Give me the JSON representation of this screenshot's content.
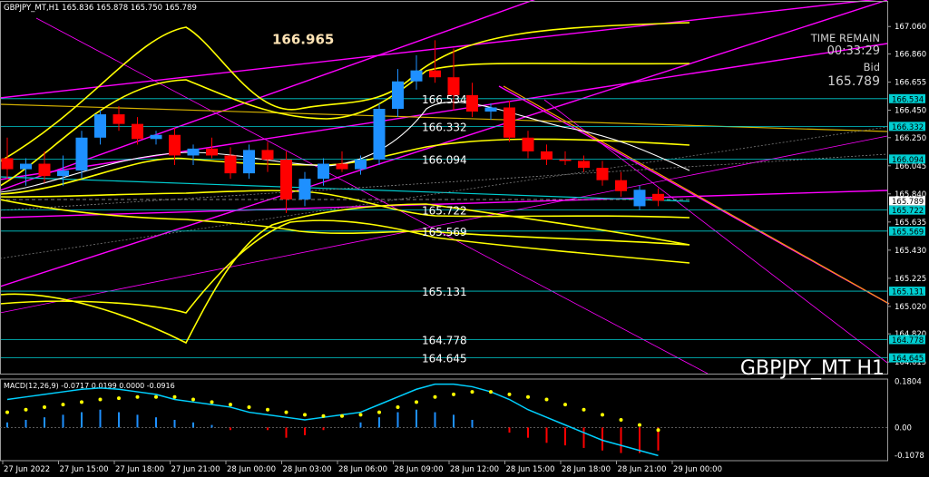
{
  "symbol_header": "GBPJPY_MT,H1  165.836 165.878 165.750 165.789",
  "watermark": "GBPJPY_MT H1",
  "time_remain_label": "TIME REMAIN",
  "time_remain_value": "00:33:29",
  "bid_label": "Bid",
  "bid_value": "165.789",
  "macd_header": "MACD(12,26,9) -0.0717 0.0199 0.0000 -0.0916",
  "colors": {
    "bull": "#1e90ff",
    "bear": "#ff0000",
    "envelope": "#ffff00",
    "channel": "#ff00ff",
    "level_line": "#00ced1",
    "macd_signal": "#00d0ff",
    "macd_dots": "#ffff00"
  },
  "chart_data": [
    {
      "type": "candlestick",
      "price_axis_ticks": [
        "167.060",
        "166.860",
        "166.655",
        "166.450",
        "166.250",
        "166.045",
        "165.840",
        "165.635",
        "165.430",
        "165.225",
        "165.020",
        "164.820",
        "164.615"
      ],
      "price_range": [
        164.53,
        167.24
      ],
      "time_axis_labels": [
        "27 Jun 2022",
        "27 Jun 15:00",
        "27 Jun 18:00",
        "27 Jun 21:00",
        "28 Jun 00:00",
        "28 Jun 03:00",
        "28 Jun 06:00",
        "28 Jun 09:00",
        "28 Jun 12:00",
        "28 Jun 15:00",
        "28 Jun 18:00",
        "28 Jun 21:00",
        "29 Jun 00:00"
      ],
      "level_labels": [
        {
          "text": "166.965",
          "price": 166.965,
          "style": "highlight"
        },
        {
          "text": "166.534",
          "price": 166.534
        },
        {
          "text": "166.332",
          "price": 166.332
        },
        {
          "text": "166.094",
          "price": 166.094
        },
        {
          "text": "165.722",
          "price": 165.722
        },
        {
          "text": "165.569",
          "price": 165.569
        },
        {
          "text": "165.131",
          "price": 165.131
        },
        {
          "text": "164.778",
          "price": 164.778
        },
        {
          "text": "164.645",
          "price": 164.645
        }
      ],
      "axis_tags": [
        {
          "text": "166.534",
          "price": 166.534,
          "color": "#00ced1"
        },
        {
          "text": "166.332",
          "price": 166.332,
          "color": "#00ced1"
        },
        {
          "text": "166.094",
          "price": 166.094,
          "color": "#00ced1"
        },
        {
          "text": "165.789",
          "price": 165.789,
          "color": "#ffffff"
        },
        {
          "text": "165.722",
          "price": 165.722,
          "color": "#00ced1"
        },
        {
          "text": "165.569",
          "price": 165.569,
          "color": "#00ced1"
        },
        {
          "text": "165.131",
          "price": 165.131,
          "color": "#00ced1"
        },
        {
          "text": "164.778",
          "price": 164.778,
          "color": "#00ced1"
        },
        {
          "text": "164.645",
          "price": 164.645,
          "color": "#00ced1"
        }
      ],
      "candles": [
        {
          "o": 166.1,
          "h": 166.25,
          "l": 165.95,
          "c": 166.02
        },
        {
          "o": 166.02,
          "h": 166.1,
          "l": 165.9,
          "c": 166.06
        },
        {
          "o": 166.06,
          "h": 166.15,
          "l": 165.92,
          "c": 165.97
        },
        {
          "o": 165.97,
          "h": 166.12,
          "l": 165.9,
          "c": 166.01
        },
        {
          "o": 166.01,
          "h": 166.3,
          "l": 165.95,
          "c": 166.25
        },
        {
          "o": 166.25,
          "h": 166.45,
          "l": 166.2,
          "c": 166.42
        },
        {
          "o": 166.42,
          "h": 166.48,
          "l": 166.3,
          "c": 166.35
        },
        {
          "o": 166.35,
          "h": 166.4,
          "l": 166.2,
          "c": 166.24
        },
        {
          "o": 166.24,
          "h": 166.3,
          "l": 166.2,
          "c": 166.27
        },
        {
          "o": 166.27,
          "h": 166.32,
          "l": 166.05,
          "c": 166.12
        },
        {
          "o": 166.12,
          "h": 166.2,
          "l": 166.05,
          "c": 166.17
        },
        {
          "o": 166.17,
          "h": 166.25,
          "l": 166.1,
          "c": 166.12
        },
        {
          "o": 166.12,
          "h": 166.18,
          "l": 165.95,
          "c": 165.99
        },
        {
          "o": 165.99,
          "h": 166.2,
          "l": 165.95,
          "c": 166.16
        },
        {
          "o": 166.16,
          "h": 166.22,
          "l": 166.0,
          "c": 166.09
        },
        {
          "o": 166.09,
          "h": 166.15,
          "l": 165.7,
          "c": 165.8
        },
        {
          "o": 165.8,
          "h": 166.0,
          "l": 165.75,
          "c": 165.95
        },
        {
          "o": 165.95,
          "h": 166.1,
          "l": 165.9,
          "c": 166.06
        },
        {
          "o": 166.06,
          "h": 166.15,
          "l": 166.0,
          "c": 166.02
        },
        {
          "o": 166.02,
          "h": 166.12,
          "l": 165.98,
          "c": 166.09
        },
        {
          "o": 166.09,
          "h": 166.5,
          "l": 166.05,
          "c": 166.46
        },
        {
          "o": 166.46,
          "h": 166.75,
          "l": 166.4,
          "c": 166.66
        },
        {
          "o": 166.66,
          "h": 166.85,
          "l": 166.6,
          "c": 166.74
        },
        {
          "o": 166.74,
          "h": 166.96,
          "l": 166.65,
          "c": 166.69
        },
        {
          "o": 166.69,
          "h": 166.9,
          "l": 166.45,
          "c": 166.56
        },
        {
          "o": 166.56,
          "h": 166.65,
          "l": 166.4,
          "c": 166.44
        },
        {
          "o": 166.44,
          "h": 166.5,
          "l": 166.38,
          "c": 166.47
        },
        {
          "o": 166.47,
          "h": 166.52,
          "l": 166.22,
          "c": 166.25
        },
        {
          "o": 166.25,
          "h": 166.3,
          "l": 166.1,
          "c": 166.15
        },
        {
          "o": 166.15,
          "h": 166.2,
          "l": 166.05,
          "c": 166.09
        },
        {
          "o": 166.09,
          "h": 166.15,
          "l": 166.05,
          "c": 166.08
        },
        {
          "o": 166.08,
          "h": 166.12,
          "l": 166.0,
          "c": 166.03
        },
        {
          "o": 166.03,
          "h": 166.08,
          "l": 165.9,
          "c": 165.94
        },
        {
          "o": 165.94,
          "h": 166.0,
          "l": 165.82,
          "c": 165.86
        },
        {
          "o": 165.75,
          "h": 165.9,
          "l": 165.72,
          "c": 165.87
        },
        {
          "o": 165.84,
          "h": 165.88,
          "l": 165.75,
          "c": 165.79
        }
      ],
      "macd": {
        "header": "MACD(12,26,9) -0.0717 0.0199 0.0000 -0.0916",
        "axis_ticks": [
          "0.1804",
          "0.00",
          "-0.1078"
        ],
        "range": [
          -0.13,
          0.19
        ],
        "histogram": [
          0.02,
          0.03,
          0.04,
          0.05,
          0.06,
          0.07,
          0.06,
          0.05,
          0.04,
          0.03,
          0.02,
          0.01,
          -0.01,
          0.0,
          -0.01,
          -0.04,
          -0.03,
          -0.01,
          0.0,
          0.02,
          0.04,
          0.06,
          0.07,
          0.06,
          0.05,
          0.03,
          0.0,
          -0.02,
          -0.04,
          -0.06,
          -0.07,
          -0.08,
          -0.09,
          -0.1,
          -0.1,
          -0.09
        ],
        "signal_line": [
          0.11,
          0.12,
          0.13,
          0.14,
          0.15,
          0.155,
          0.15,
          0.14,
          0.13,
          0.11,
          0.1,
          0.09,
          0.08,
          0.06,
          0.05,
          0.04,
          0.03,
          0.04,
          0.05,
          0.06,
          0.09,
          0.12,
          0.15,
          0.17,
          0.17,
          0.16,
          0.14,
          0.11,
          0.07,
          0.04,
          0.01,
          -0.02,
          -0.05,
          -0.07,
          -0.09,
          -0.11
        ],
        "dots": [
          0.06,
          0.07,
          0.08,
          0.09,
          0.1,
          0.11,
          0.115,
          0.12,
          0.12,
          0.12,
          0.11,
          0.1,
          0.09,
          0.08,
          0.07,
          0.06,
          0.05,
          0.045,
          0.045,
          0.05,
          0.06,
          0.08,
          0.1,
          0.12,
          0.13,
          0.14,
          0.14,
          0.13,
          0.12,
          0.11,
          0.09,
          0.07,
          0.05,
          0.03,
          0.01,
          -0.01
        ]
      }
    }
  ]
}
